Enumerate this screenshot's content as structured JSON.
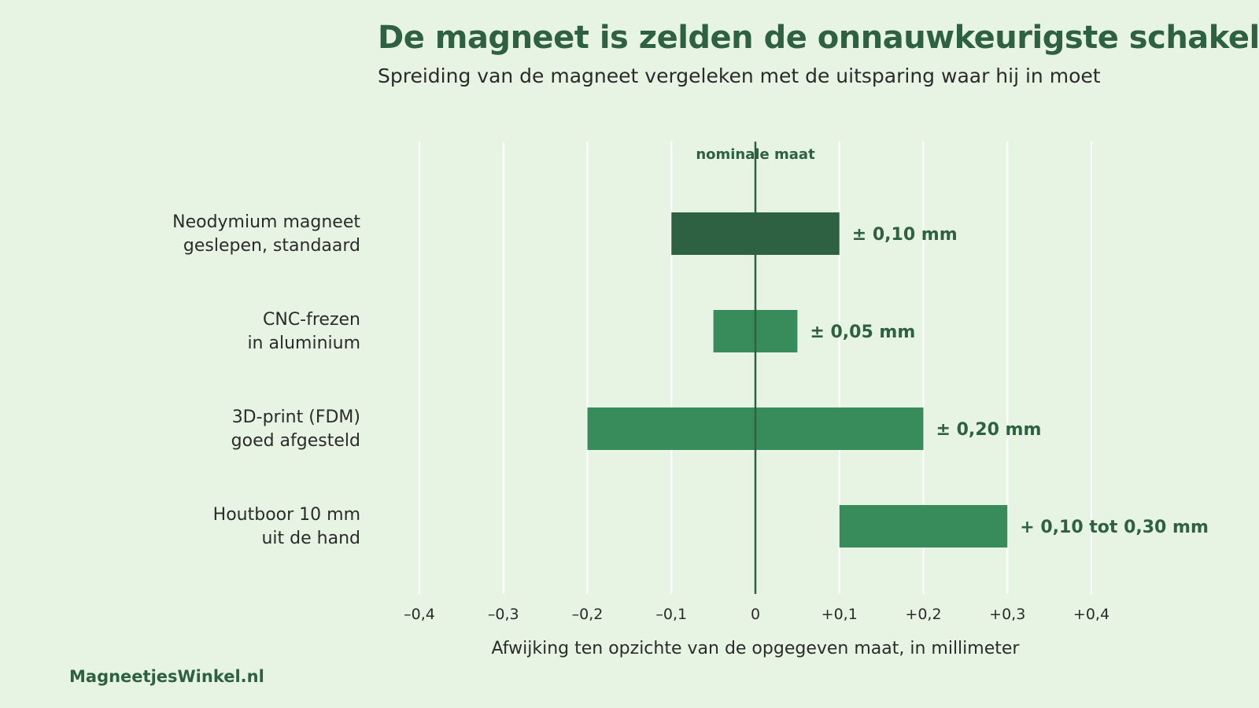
{
  "title": "De magneet is zelden de onnauwkeurigste schakel",
  "subtitle": "Spreiding van de magneet vergeleken met de uitsparing waar hij in moet",
  "source": "MagneetjesWinkel.nl",
  "colors": {
    "background": "#e7f4e3",
    "accent_dark": "#2d6141",
    "bar_highlight": "#2d6141",
    "bar_default": "#388b5b",
    "gridline": "#ffffff",
    "text": "#2b2b2b"
  },
  "chart_data": {
    "type": "bar",
    "orientation": "horizontal-range",
    "xlabel": "Afwijking ten opzichte van de opgegeven maat, in millimeter",
    "xlim": [
      -0.4,
      0.4
    ],
    "ticks": [
      {
        "value": -0.4,
        "label": "–0,4"
      },
      {
        "value": -0.3,
        "label": "–0,3"
      },
      {
        "value": -0.2,
        "label": "–0,2"
      },
      {
        "value": -0.1,
        "label": "–0,1"
      },
      {
        "value": 0,
        "label": "0"
      },
      {
        "value": 0.1,
        "label": "+0,1"
      },
      {
        "value": 0.2,
        "label": "+0,2"
      },
      {
        "value": 0.3,
        "label": "+0,3"
      },
      {
        "value": 0.4,
        "label": "+0,4"
      }
    ],
    "grid": true,
    "reference_line": {
      "value": 0,
      "label": "nominale maat"
    },
    "series": [
      {
        "category": [
          "Neodymium magneet",
          "geslepen, standaard"
        ],
        "low": -0.1,
        "high": 0.1,
        "label": "± 0,10 mm",
        "highlight": true
      },
      {
        "category": [
          "CNC-frezen",
          "in aluminium"
        ],
        "low": -0.05,
        "high": 0.05,
        "label": "± 0,05 mm",
        "highlight": false
      },
      {
        "category": [
          "3D-print (FDM)",
          "goed afgesteld"
        ],
        "low": -0.2,
        "high": 0.2,
        "label": "± 0,20 mm",
        "highlight": false
      },
      {
        "category": [
          "Houtboor 10 mm",
          "uit de hand"
        ],
        "low": 0.1,
        "high": 0.3,
        "label": "+ 0,10 tot 0,30 mm",
        "highlight": false
      }
    ]
  }
}
